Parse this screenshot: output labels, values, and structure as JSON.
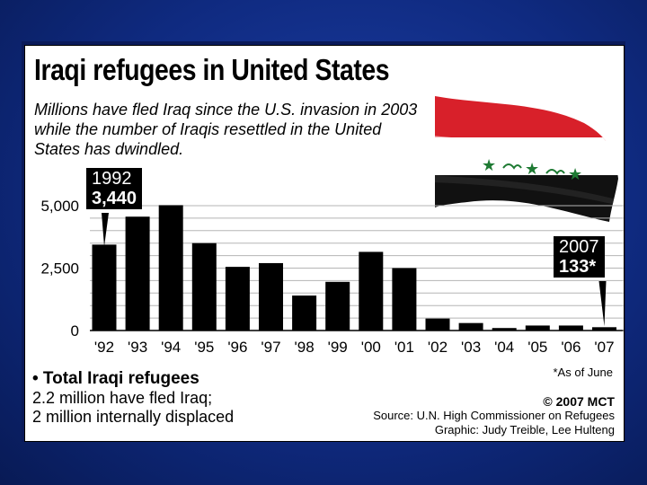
{
  "header": {
    "title": "Iraqi refugees in United States",
    "subtitle": "Millions have fled Iraq since the U.S. invasion in 2003 while the number of Iraqis resettled in the United States has dwindled."
  },
  "callouts": {
    "first": {
      "year": "1992",
      "value": "3,440"
    },
    "last": {
      "year": "2007",
      "value": "133*"
    }
  },
  "legend": {
    "heading": "• Total Iraqi refugees",
    "line1": "2.2 million have fled Iraq;",
    "line2": "2 million internally displaced"
  },
  "footnote": "*As of June",
  "credits": {
    "copyright": "© 2007 MCT",
    "source": "Source: U.N. High Commissioner on Refugees",
    "graphic": "Graphic: Judy Treible, Lee Hulteng"
  },
  "colors": {
    "bar": "#000000",
    "flag_red": "#d8202a",
    "flag_green": "#1e7a33",
    "flag_black": "#111111"
  },
  "chart_data": {
    "type": "bar",
    "title": "Iraqi refugees in United States",
    "categories": [
      "'92",
      "'93",
      "'94",
      "'95",
      "'96",
      "'97",
      "'98",
      "'99",
      "'00",
      "'01",
      "'02",
      "'03",
      "'04",
      "'05",
      "'06",
      "'07"
    ],
    "values": [
      3440,
      4560,
      5020,
      3500,
      2550,
      2700,
      1400,
      1950,
      3150,
      2500,
      480,
      300,
      100,
      200,
      200,
      133
    ],
    "ylabel": "",
    "xlabel": "",
    "ylim": [
      0,
      5000
    ],
    "yticks": [
      0,
      2500,
      5000
    ],
    "ytick_labels": [
      "0",
      "2,500",
      "5,000"
    ],
    "grid": true
  }
}
